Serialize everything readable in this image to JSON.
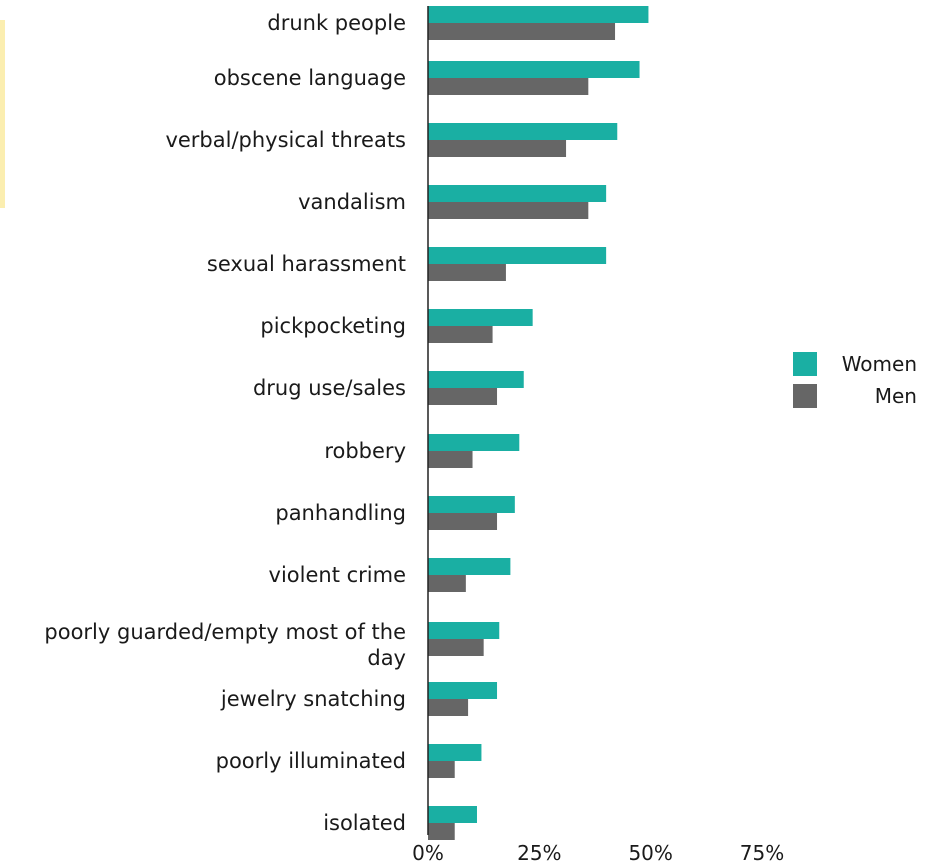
{
  "chart_data": {
    "type": "bar",
    "orientation": "horizontal",
    "categories": [
      "drunk people",
      "obscene language",
      "verbal/physical threats",
      "vandalism",
      "sexual harassment",
      "pickpocketing",
      "drug use/sales",
      "robbery",
      "panhandling",
      "violent crime",
      "poorly guarded/empty most of the day",
      "jewelry snatching",
      "poorly illuminated",
      "isolated"
    ],
    "series": [
      {
        "name": "Women",
        "color": "#1aafa3",
        "values": [
          49.5,
          47.5,
          42.5,
          40,
          40,
          23.5,
          21.5,
          20.5,
          19.5,
          18.5,
          16,
          15.5,
          12,
          11
        ]
      },
      {
        "name": "Men",
        "color": "#666666",
        "values": [
          42,
          36,
          31,
          36,
          17.5,
          14.5,
          15.5,
          10,
          15.5,
          8.5,
          12.5,
          9,
          6,
          6
        ]
      }
    ],
    "xlim": [
      0,
      100
    ],
    "xticks": [
      "0%",
      "25%",
      "50%",
      "75%"
    ],
    "xtick_values": [
      0,
      25,
      50,
      75
    ],
    "grid": false,
    "legend_position": "right"
  }
}
